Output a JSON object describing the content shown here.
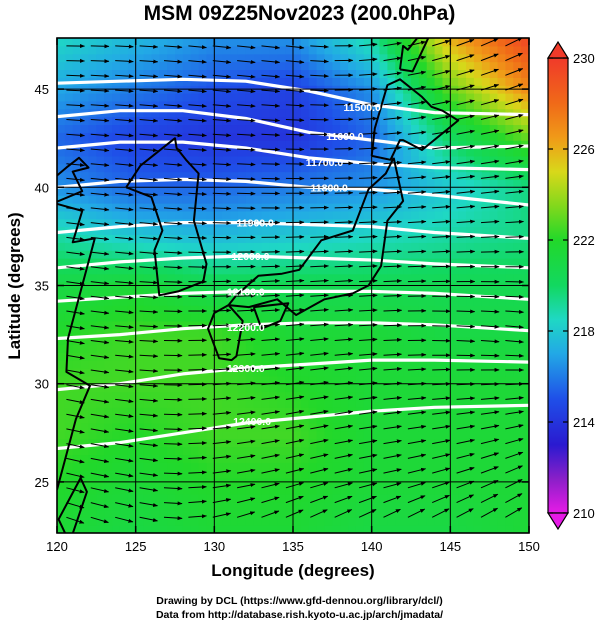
{
  "title": "MSM 09Z25Nov2023 (200.0hPa)",
  "credits": {
    "line1": "Drawing by DCL (https://www.gfd-dennou.org/library/dcl/)",
    "line2": "Data from http://database.rish.kyoto-u.ac.jp/arch/jmadata/"
  },
  "chart_data": {
    "type": "heatmap",
    "description_fields": [
      "temperature shading",
      "geopotential height contours",
      "wind streamlines"
    ],
    "xlabel": "Longitude (degrees)",
    "ylabel": "Latitude  (degrees)",
    "xlim": [
      120,
      150
    ],
    "ylim": [
      22.4,
      47.6
    ],
    "xticks": [
      120,
      125,
      130,
      135,
      140,
      145,
      150
    ],
    "yticks": [
      25,
      30,
      35,
      40,
      45
    ],
    "grid": true,
    "colorbar": {
      "min": 210,
      "max": 230,
      "ticks": [
        210,
        214,
        218,
        222,
        226,
        230
      ],
      "stops": [
        {
          "value": 210,
          "color": "#e61be6"
        },
        {
          "value": 211.5,
          "color": "#8a1fc8"
        },
        {
          "value": 213,
          "color": "#2a1ad0"
        },
        {
          "value": 215,
          "color": "#1f4fe8"
        },
        {
          "value": 217,
          "color": "#22a8e6"
        },
        {
          "value": 218.5,
          "color": "#1fd8c4"
        },
        {
          "value": 220,
          "color": "#12d860"
        },
        {
          "value": 222,
          "color": "#22d82a"
        },
        {
          "value": 223.5,
          "color": "#82d81c"
        },
        {
          "value": 225,
          "color": "#d8d81a"
        },
        {
          "value": 226.5,
          "color": "#f09a18"
        },
        {
          "value": 228,
          "color": "#f06a18"
        },
        {
          "value": 230,
          "color": "#f03a2a"
        }
      ]
    },
    "contours": [
      {
        "label": "11500.0",
        "lon": [
          120,
          124,
          128,
          132,
          136,
          140,
          144,
          150
        ],
        "lat": [
          45.3,
          45.4,
          45.5,
          45.4,
          44.9,
          44.2,
          43.8,
          43.7
        ]
      },
      {
        "label": "11600.0",
        "lon": [
          120,
          124,
          128,
          132,
          136,
          140,
          144,
          150
        ],
        "lat": [
          43.6,
          43.9,
          43.9,
          43.5,
          42.8,
          42.4,
          42.0,
          42.1
        ]
      },
      {
        "label": "11700.0",
        "lon": [
          120,
          124,
          128,
          132,
          136,
          140,
          144,
          150
        ],
        "lat": [
          42.0,
          42.3,
          42.3,
          42.0,
          41.5,
          41.2,
          41.0,
          40.9
        ]
      },
      {
        "label": "11800.0",
        "lon": [
          120,
          124,
          128,
          132,
          136,
          140,
          144,
          150
        ],
        "lat": [
          40.0,
          40.3,
          40.4,
          40.3,
          40.0,
          39.9,
          39.6,
          39.1
        ]
      },
      {
        "label": "11900.0",
        "lon": [
          120,
          124,
          128,
          132,
          136,
          140,
          144,
          150
        ],
        "lat": [
          37.7,
          38.0,
          38.2,
          38.2,
          38.1,
          38.0,
          37.7,
          37.4
        ]
      },
      {
        "label": "12000.0",
        "lon": [
          120,
          124,
          128,
          132,
          136,
          140,
          144,
          150
        ],
        "lat": [
          35.9,
          36.2,
          36.4,
          36.5,
          36.4,
          36.3,
          36.1,
          35.9
        ]
      },
      {
        "label": "12100.0",
        "lon": [
          120,
          124,
          128,
          132,
          136,
          140,
          144,
          150
        ],
        "lat": [
          34.2,
          34.4,
          34.6,
          34.7,
          34.7,
          34.7,
          34.6,
          34.3
        ]
      },
      {
        "label": "12200.0",
        "lon": [
          120,
          124,
          128,
          132,
          136,
          140,
          144,
          150
        ],
        "lat": [
          32.3,
          32.5,
          32.8,
          33.0,
          33.1,
          33.1,
          33.0,
          32.7
        ]
      },
      {
        "label": "12300.0",
        "lon": [
          120,
          124,
          128,
          132,
          136,
          140,
          144,
          150
        ],
        "lat": [
          29.7,
          30.0,
          30.5,
          30.8,
          31.0,
          31.2,
          31.2,
          31.1
        ]
      },
      {
        "label": "12400.0",
        "lon": [
          120,
          124,
          128,
          132,
          136,
          140,
          144,
          150
        ],
        "lat": [
          26.7,
          27.0,
          27.5,
          28.0,
          28.3,
          28.6,
          28.8,
          28.9
        ]
      }
    ],
    "labeled_contours": [
      {
        "label": "11500.0",
        "lon": 139.4,
        "lat": 44.1
      },
      {
        "label": "11600.0",
        "lon": 138.3,
        "lat": 42.6
      },
      {
        "label": "11700.0",
        "lon": 137.0,
        "lat": 41.3
      },
      {
        "label": "11800.0",
        "lon": 137.3,
        "lat": 40.0
      },
      {
        "label": "11900.0",
        "lon": 132.6,
        "lat": 38.2
      },
      {
        "label": "12000.0",
        "lon": 132.3,
        "lat": 36.5
      },
      {
        "label": "12100.0",
        "lon": 132.0,
        "lat": 34.7
      },
      {
        "label": "12200.0",
        "lon": 132.0,
        "lat": 32.9
      },
      {
        "label": "12300.0",
        "lon": 132.0,
        "lat": 30.8
      },
      {
        "label": "12400.0",
        "lon": 132.4,
        "lat": 28.1
      }
    ],
    "temperature_field": {
      "units": "K",
      "lon_nodes": [
        120,
        125,
        130,
        135,
        140,
        145,
        150
      ],
      "lat_nodes": [
        47.6,
        45,
        42.5,
        40,
        37.5,
        35,
        32.5,
        30,
        27.5,
        25,
        22.4
      ],
      "values": [
        [
          218.5,
          217.5,
          216.5,
          216.5,
          219.0,
          226.0,
          229.5
        ],
        [
          217.0,
          216.0,
          215.0,
          214.5,
          216.5,
          223.0,
          227.0
        ],
        [
          215.5,
          214.5,
          214.0,
          214.0,
          215.5,
          220.0,
          223.0
        ],
        [
          216.5,
          215.5,
          215.5,
          216.0,
          216.5,
          218.0,
          219.5
        ],
        [
          219.0,
          218.0,
          217.5,
          218.0,
          218.5,
          219.0,
          219.5
        ],
        [
          221.0,
          221.5,
          220.5,
          220.5,
          220.5,
          220.5,
          220.5
        ],
        [
          222.0,
          222.5,
          222.5,
          221.5,
          221.5,
          221.0,
          221.0
        ],
        [
          222.5,
          222.5,
          222.5,
          222.0,
          221.5,
          221.5,
          221.5
        ],
        [
          222.5,
          222.0,
          222.5,
          222.5,
          221.5,
          221.5,
          221.5
        ],
        [
          222.0,
          221.5,
          222.0,
          222.0,
          221.5,
          221.5,
          221.5
        ],
        [
          221.5,
          221.0,
          221.5,
          221.5,
          221.0,
          221.0,
          221.5
        ]
      ]
    },
    "coastlines": [
      {
        "name": "Hokkaido",
        "lon": [
          140.0,
          141.2,
          141.8,
          142.0,
          143.2,
          145.5,
          144.5,
          143.8,
          143.2,
          141.8,
          141.0,
          140.2,
          140.0
        ],
        "lat": [
          41.6,
          41.4,
          42.4,
          42.4,
          41.9,
          43.4,
          43.9,
          44.1,
          44.6,
          45.5,
          45.2,
          43.0,
          41.6
        ]
      },
      {
        "name": "Honshu",
        "lon": [
          141.4,
          142.0,
          141.0,
          140.6,
          139.8,
          138.8,
          137.0,
          135.2,
          134.0,
          132.2,
          130.9,
          131.4,
          132.8,
          134.3,
          135.4,
          136.8,
          138.8,
          139.8,
          140.9,
          141.4
        ],
        "lat": [
          41.5,
          39.3,
          38.3,
          36.0,
          35.0,
          34.6,
          34.3,
          33.5,
          34.3,
          33.9,
          34.0,
          34.5,
          35.5,
          35.6,
          35.8,
          37.3,
          37.8,
          39.9,
          40.7,
          41.5
        ]
      },
      {
        "name": "Kyushu",
        "lon": [
          130.9,
          131.8,
          131.4,
          131.1,
          130.3,
          129.6,
          130.0,
          130.9
        ],
        "lat": [
          34.0,
          33.2,
          31.4,
          31.2,
          31.3,
          32.8,
          33.6,
          34.0
        ]
      },
      {
        "name": "Shikoku",
        "lon": [
          132.5,
          134.7,
          134.2,
          133.0,
          132.5
        ],
        "lat": [
          33.9,
          34.1,
          33.2,
          32.8,
          33.9
        ]
      },
      {
        "name": "Korea",
        "lon": [
          124.4,
          126.0,
          126.7,
          126.2,
          126.5,
          127.7,
          129.3,
          129.5,
          128.7,
          129.0,
          128.2,
          127.6,
          127.5,
          125.3,
          124.4
        ],
        "lat": [
          40.0,
          39.5,
          37.8,
          36.8,
          34.5,
          34.7,
          35.2,
          36.1,
          38.3,
          40.7,
          41.4,
          42.0,
          42.5,
          41.1,
          40.0
        ]
      },
      {
        "name": "China-Coast",
        "lon": [
          120.0,
          121.2,
          122.1,
          120.6,
          120.7,
          122.4,
          121.0,
          121.6,
          119.8,
          121.6,
          121.0,
          122.0,
          121.4,
          120.6,
          120.0
        ],
        "lat": [
          24.6,
          28.2,
          29.9,
          30.6,
          32.3,
          37.4,
          37.2,
          38.8,
          39.2,
          39.8,
          40.8,
          41.0,
          41.5,
          41.0,
          40.6
        ]
      },
      {
        "name": "Taiwan",
        "lon": [
          121.5,
          121.9,
          120.8,
          120.1,
          121.5
        ],
        "lat": [
          25.2,
          24.5,
          21.9,
          23.1,
          25.2
        ]
      },
      {
        "name": "Sakhalin",
        "lon": [
          141.8,
          142.6,
          143.6,
          142.9,
          142.3,
          142.0,
          141.8
        ],
        "lat": [
          46.0,
          45.9,
          47.6,
          47.6,
          47.0,
          47.2,
          46.0
        ]
      }
    ],
    "wind_field": {
      "lon_nodes": [
        120,
        125,
        130,
        135,
        140,
        145,
        150
      ],
      "lat_nodes": [
        47.6,
        40,
        32.5,
        25,
        22.4
      ],
      "u": [
        [
          40,
          42,
          44,
          42,
          35,
          34,
          30
        ],
        [
          46,
          48,
          50,
          50,
          48,
          44,
          42
        ],
        [
          40,
          44,
          48,
          50,
          48,
          44,
          40
        ],
        [
          30,
          30,
          34,
          36,
          34,
          30,
          28
        ],
        [
          32,
          30,
          26,
          28,
          30,
          34,
          40
        ]
      ],
      "v": [
        [
          0,
          -2,
          -4,
          -4,
          4,
          10,
          14
        ],
        [
          -4,
          -4,
          -2,
          0,
          2,
          4,
          4
        ],
        [
          -6,
          -2,
          2,
          4,
          2,
          -2,
          -4
        ],
        [
          -6,
          -4,
          4,
          8,
          6,
          8,
          12
        ],
        [
          -10,
          -6,
          6,
          12,
          14,
          16,
          20
        ]
      ]
    }
  }
}
